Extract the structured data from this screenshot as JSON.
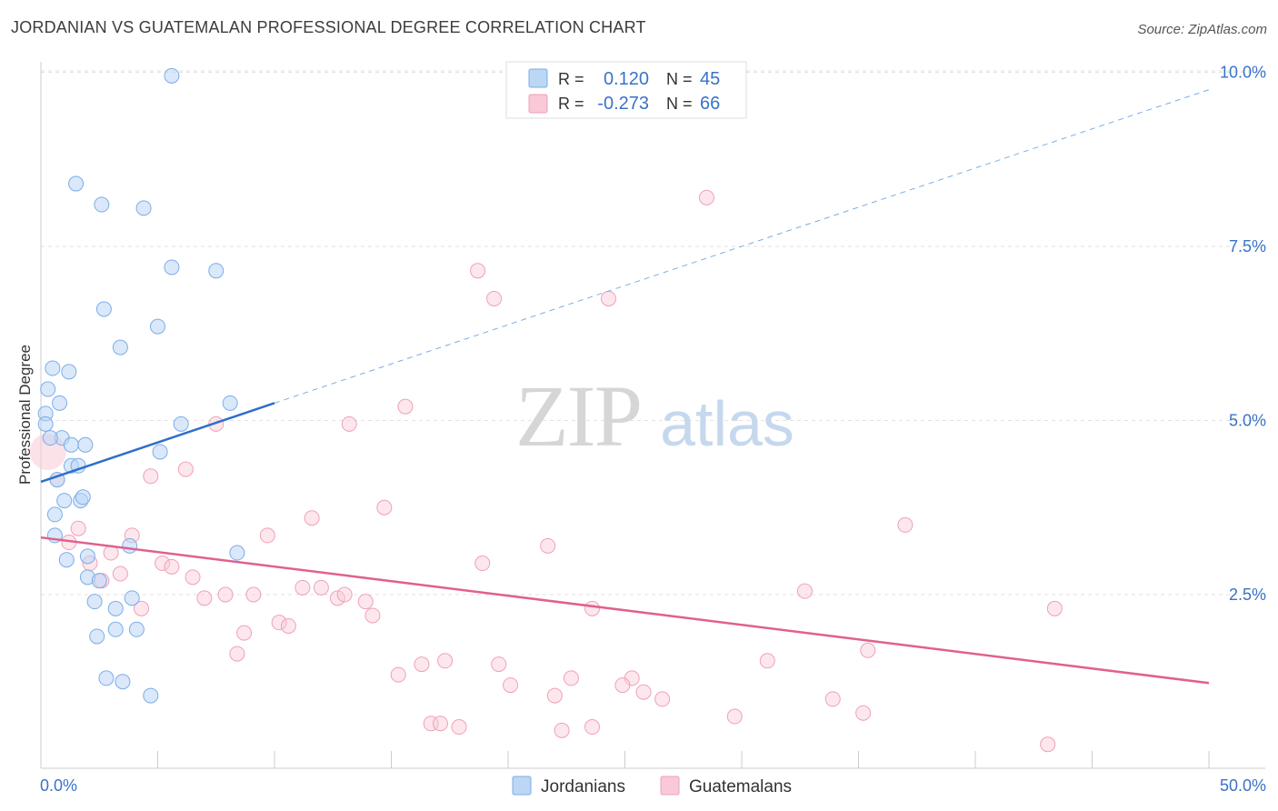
{
  "title": "JORDANIAN VS GUATEMALAN PROFESSIONAL DEGREE CORRELATION CHART",
  "source": "Source: ZipAtlas.com",
  "watermark": {
    "left": "ZIP",
    "right": "atlas"
  },
  "legend_top": [
    {
      "r_label": "R =",
      "r_value": "0.120",
      "n_label": "N =",
      "n_value": "45",
      "color": "#7aaee8"
    },
    {
      "r_label": "R =",
      "r_value": "-0.273",
      "n_label": "N =",
      "n_value": "66",
      "color": "#f0a0b8"
    }
  ],
  "chart_data": {
    "type": "scatter",
    "title": "JORDANIAN VS GUATEMALAN PROFESSIONAL DEGREE CORRELATION CHART",
    "xlabel": "",
    "ylabel": "Professional Degree",
    "xlim": [
      0,
      50
    ],
    "ylim": [
      0,
      10.5
    ],
    "x_tick_labels": [
      "0.0%",
      "50.0%"
    ],
    "y_ticks": [
      2.5,
      5.0,
      7.5,
      10.0
    ],
    "y_tick_labels": [
      "2.5%",
      "5.0%",
      "7.5%",
      "10.0%"
    ],
    "grid": true,
    "legend_position": "bottom-center",
    "series": [
      {
        "name": "Jordanians",
        "color": "#7aaee8",
        "line_color": "#2d6fc9",
        "trend": {
          "x0": 0,
          "y0": 4.12,
          "x1": 10,
          "y1": 5.25,
          "x_end": 50,
          "y_end": 9.75
        },
        "points": [
          [
            5.6,
            9.95
          ],
          [
            1.5,
            8.4
          ],
          [
            2.6,
            8.1
          ],
          [
            4.4,
            8.05
          ],
          [
            5.6,
            7.2
          ],
          [
            7.5,
            7.15
          ],
          [
            2.7,
            6.6
          ],
          [
            5.0,
            6.35
          ],
          [
            3.4,
            6.05
          ],
          [
            0.5,
            5.75
          ],
          [
            1.2,
            5.7
          ],
          [
            0.3,
            5.45
          ],
          [
            0.8,
            5.25
          ],
          [
            8.1,
            5.25
          ],
          [
            0.2,
            5.1
          ],
          [
            0.2,
            4.95
          ],
          [
            6.0,
            4.95
          ],
          [
            0.9,
            4.75
          ],
          [
            0.4,
            4.75
          ],
          [
            1.3,
            4.65
          ],
          [
            1.9,
            4.65
          ],
          [
            5.1,
            4.55
          ],
          [
            1.3,
            4.35
          ],
          [
            1.6,
            4.35
          ],
          [
            0.7,
            4.15
          ],
          [
            1.0,
            3.85
          ],
          [
            1.7,
            3.85
          ],
          [
            1.8,
            3.9
          ],
          [
            0.6,
            3.65
          ],
          [
            0.6,
            3.35
          ],
          [
            3.8,
            3.2
          ],
          [
            8.4,
            3.1
          ],
          [
            2.0,
            3.05
          ],
          [
            1.1,
            3.0
          ],
          [
            2.0,
            2.75
          ],
          [
            2.5,
            2.7
          ],
          [
            3.9,
            2.45
          ],
          [
            2.3,
            2.4
          ],
          [
            3.2,
            2.3
          ],
          [
            3.2,
            2.0
          ],
          [
            4.1,
            2.0
          ],
          [
            2.4,
            1.9
          ],
          [
            2.8,
            1.3
          ],
          [
            3.5,
            1.25
          ],
          [
            4.7,
            1.05
          ]
        ]
      },
      {
        "name": "Guatemalans",
        "color": "#f0a0b8",
        "line_color": "#e0608e",
        "trend": {
          "x0": 0,
          "y0": 3.32,
          "x1": 50,
          "y1": 1.23
        },
        "points": [
          [
            0.3,
            4.55
          ],
          [
            28.5,
            8.2
          ],
          [
            18.7,
            7.15
          ],
          [
            19.4,
            6.75
          ],
          [
            24.3,
            6.75
          ],
          [
            15.6,
            5.2
          ],
          [
            7.5,
            4.95
          ],
          [
            13.2,
            4.95
          ],
          [
            6.2,
            4.3
          ],
          [
            4.7,
            4.2
          ],
          [
            0.7,
            4.15
          ],
          [
            14.7,
            3.75
          ],
          [
            11.6,
            3.6
          ],
          [
            37.0,
            3.5
          ],
          [
            1.6,
            3.45
          ],
          [
            3.9,
            3.35
          ],
          [
            9.7,
            3.35
          ],
          [
            1.2,
            3.25
          ],
          [
            21.7,
            3.2
          ],
          [
            3.0,
            3.1
          ],
          [
            2.1,
            2.95
          ],
          [
            5.2,
            2.95
          ],
          [
            5.6,
            2.9
          ],
          [
            18.9,
            2.95
          ],
          [
            3.4,
            2.8
          ],
          [
            6.5,
            2.75
          ],
          [
            2.6,
            2.7
          ],
          [
            11.2,
            2.6
          ],
          [
            12.0,
            2.6
          ],
          [
            7.0,
            2.45
          ],
          [
            7.9,
            2.5
          ],
          [
            9.1,
            2.5
          ],
          [
            12.7,
            2.45
          ],
          [
            13.0,
            2.5
          ],
          [
            13.9,
            2.4
          ],
          [
            32.7,
            2.55
          ],
          [
            23.6,
            2.3
          ],
          [
            43.4,
            2.3
          ],
          [
            4.3,
            2.3
          ],
          [
            14.2,
            2.2
          ],
          [
            10.2,
            2.1
          ],
          [
            10.6,
            2.05
          ],
          [
            8.7,
            1.95
          ],
          [
            8.4,
            1.65
          ],
          [
            35.4,
            1.7
          ],
          [
            17.3,
            1.55
          ],
          [
            31.1,
            1.55
          ],
          [
            19.6,
            1.5
          ],
          [
            16.3,
            1.5
          ],
          [
            15.3,
            1.35
          ],
          [
            22.7,
            1.3
          ],
          [
            25.3,
            1.3
          ],
          [
            20.1,
            1.2
          ],
          [
            24.9,
            1.2
          ],
          [
            25.8,
            1.1
          ],
          [
            22.0,
            1.05
          ],
          [
            26.6,
            1.0
          ],
          [
            33.9,
            1.0
          ],
          [
            35.2,
            0.8
          ],
          [
            29.7,
            0.75
          ],
          [
            16.7,
            0.65
          ],
          [
            17.1,
            0.65
          ],
          [
            17.9,
            0.6
          ],
          [
            23.6,
            0.6
          ],
          [
            22.3,
            0.55
          ],
          [
            43.1,
            0.35
          ]
        ]
      }
    ]
  }
}
